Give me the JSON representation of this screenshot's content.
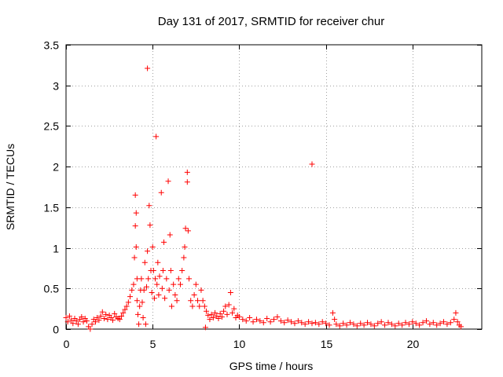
{
  "chart_data": {
    "type": "scatter",
    "title": "Day 131 of 2017, SRMTID for receiver chur",
    "xlabel": "GPS time / hours",
    "ylabel": "SRMTID / TECUs",
    "xlim": [
      0,
      24
    ],
    "ylim": [
      0,
      3.5
    ],
    "x_ticks": [
      0,
      5,
      10,
      15,
      20
    ],
    "x_tick_labels": [
      "0",
      "5",
      "10",
      "15",
      "20"
    ],
    "y_ticks": [
      0,
      0.5,
      1,
      1.5,
      2,
      2.5,
      3,
      3.5
    ],
    "y_tick_labels": [
      "0",
      "0.5",
      "1",
      "1.5",
      "2",
      "2.5",
      "3",
      "3.5"
    ],
    "grid": true,
    "marker": "+",
    "series": [
      {
        "name": "SRMTID",
        "color": "#ff0000",
        "points": [
          [
            0.0,
            0.14
          ],
          [
            0.1,
            0.09
          ],
          [
            0.2,
            0.16
          ],
          [
            0.3,
            0.11
          ],
          [
            0.4,
            0.07
          ],
          [
            0.5,
            0.13
          ],
          [
            0.6,
            0.1
          ],
          [
            0.7,
            0.06
          ],
          [
            0.8,
            0.12
          ],
          [
            0.9,
            0.15
          ],
          [
            1.0,
            0.09
          ],
          [
            1.1,
            0.13
          ],
          [
            1.2,
            0.1
          ],
          [
            1.3,
            0.03
          ],
          [
            1.4,
            0.0
          ],
          [
            1.5,
            0.06
          ],
          [
            1.6,
            0.12
          ],
          [
            1.7,
            0.09
          ],
          [
            1.8,
            0.14
          ],
          [
            1.9,
            0.11
          ],
          [
            2.0,
            0.16
          ],
          [
            2.1,
            0.21
          ],
          [
            2.2,
            0.13
          ],
          [
            2.3,
            0.18
          ],
          [
            2.4,
            0.12
          ],
          [
            2.5,
            0.17
          ],
          [
            2.6,
            0.14
          ],
          [
            2.7,
            0.11
          ],
          [
            2.8,
            0.19
          ],
          [
            2.9,
            0.15
          ],
          [
            3.0,
            0.13
          ],
          [
            3.1,
            0.12
          ],
          [
            3.2,
            0.16
          ],
          [
            3.3,
            0.2
          ],
          [
            3.4,
            0.24
          ],
          [
            3.5,
            0.28
          ],
          [
            3.6,
            0.33
          ],
          [
            3.7,
            0.4
          ],
          [
            3.8,
            0.48
          ],
          [
            3.9,
            0.55
          ],
          [
            3.95,
            0.88
          ],
          [
            4.0,
            1.65
          ],
          [
            4.0,
            1.27
          ],
          [
            4.05,
            1.43
          ],
          [
            4.05,
            1.01
          ],
          [
            4.1,
            0.62
          ],
          [
            4.1,
            0.35
          ],
          [
            4.15,
            0.18
          ],
          [
            4.2,
            0.06
          ],
          [
            4.25,
            0.28
          ],
          [
            4.3,
            0.48
          ],
          [
            4.35,
            0.62
          ],
          [
            4.4,
            0.33
          ],
          [
            4.45,
            0.14
          ],
          [
            4.5,
            0.48
          ],
          [
            4.55,
            0.82
          ],
          [
            4.6,
            0.06
          ],
          [
            4.65,
            0.52
          ],
          [
            4.7,
            0.96
          ],
          [
            4.7,
            3.21
          ],
          [
            4.75,
            0.62
          ],
          [
            4.8,
            1.52
          ],
          [
            4.85,
            1.28
          ],
          [
            4.9,
            0.72
          ],
          [
            4.95,
            0.45
          ],
          [
            5.0,
            1.01
          ],
          [
            5.05,
            0.72
          ],
          [
            5.1,
            0.38
          ],
          [
            5.15,
            0.62
          ],
          [
            5.2,
            2.37
          ],
          [
            5.25,
            0.55
          ],
          [
            5.3,
            0.82
          ],
          [
            5.35,
            0.42
          ],
          [
            5.4,
            0.65
          ],
          [
            5.5,
            1.68
          ],
          [
            5.55,
            0.5
          ],
          [
            5.6,
            0.72
          ],
          [
            5.65,
            1.07
          ],
          [
            5.7,
            0.38
          ],
          [
            5.8,
            0.62
          ],
          [
            5.9,
            1.82
          ],
          [
            5.95,
            0.48
          ],
          [
            6.0,
            1.16
          ],
          [
            6.05,
            0.72
          ],
          [
            6.1,
            0.28
          ],
          [
            6.2,
            0.55
          ],
          [
            6.3,
            0.42
          ],
          [
            6.4,
            0.35
          ],
          [
            6.5,
            0.62
          ],
          [
            6.6,
            0.55
          ],
          [
            6.7,
            0.72
          ],
          [
            6.8,
            0.88
          ],
          [
            6.85,
            1.01
          ],
          [
            6.9,
            1.24
          ],
          [
            7.0,
            1.93
          ],
          [
            7.0,
            1.81
          ],
          [
            7.05,
            1.21
          ],
          [
            7.1,
            0.62
          ],
          [
            7.2,
            0.35
          ],
          [
            7.3,
            0.28
          ],
          [
            7.4,
            0.42
          ],
          [
            7.5,
            0.55
          ],
          [
            7.6,
            0.35
          ],
          [
            7.7,
            0.28
          ],
          [
            7.8,
            0.48
          ],
          [
            7.9,
            0.35
          ],
          [
            8.0,
            0.28
          ],
          [
            8.05,
            0.02
          ],
          [
            8.1,
            0.22
          ],
          [
            8.2,
            0.17
          ],
          [
            8.3,
            0.12
          ],
          [
            8.4,
            0.18
          ],
          [
            8.5,
            0.14
          ],
          [
            8.6,
            0.2
          ],
          [
            8.7,
            0.16
          ],
          [
            8.8,
            0.13
          ],
          [
            8.9,
            0.19
          ],
          [
            9.0,
            0.15
          ],
          [
            9.1,
            0.22
          ],
          [
            9.2,
            0.28
          ],
          [
            9.3,
            0.18
          ],
          [
            9.4,
            0.3
          ],
          [
            9.5,
            0.45
          ],
          [
            9.6,
            0.2
          ],
          [
            9.7,
            0.25
          ],
          [
            9.8,
            0.14
          ],
          [
            9.9,
            0.17
          ],
          [
            10.0,
            0.15
          ],
          [
            10.2,
            0.12
          ],
          [
            10.4,
            0.1
          ],
          [
            10.6,
            0.14
          ],
          [
            10.8,
            0.09
          ],
          [
            11.0,
            0.12
          ],
          [
            11.2,
            0.1
          ],
          [
            11.4,
            0.08
          ],
          [
            11.6,
            0.13
          ],
          [
            11.8,
            0.09
          ],
          [
            12.0,
            0.12
          ],
          [
            12.2,
            0.15
          ],
          [
            12.4,
            0.1
          ],
          [
            12.6,
            0.08
          ],
          [
            12.8,
            0.11
          ],
          [
            13.0,
            0.09
          ],
          [
            13.2,
            0.07
          ],
          [
            13.4,
            0.1
          ],
          [
            13.6,
            0.08
          ],
          [
            13.8,
            0.06
          ],
          [
            14.0,
            0.09
          ],
          [
            14.2,
            2.03
          ],
          [
            14.2,
            0.07
          ],
          [
            14.4,
            0.08
          ],
          [
            14.6,
            0.06
          ],
          [
            14.8,
            0.09
          ],
          [
            15.0,
            0.07
          ],
          [
            15.2,
            0.05
          ],
          [
            15.4,
            0.2
          ],
          [
            15.5,
            0.12
          ],
          [
            15.6,
            0.06
          ],
          [
            15.8,
            0.04
          ],
          [
            16.0,
            0.07
          ],
          [
            16.2,
            0.05
          ],
          [
            16.4,
            0.08
          ],
          [
            16.6,
            0.06
          ],
          [
            16.8,
            0.04
          ],
          [
            17.0,
            0.07
          ],
          [
            17.2,
            0.05
          ],
          [
            17.4,
            0.08
          ],
          [
            17.6,
            0.06
          ],
          [
            17.8,
            0.04
          ],
          [
            18.0,
            0.07
          ],
          [
            18.2,
            0.09
          ],
          [
            18.4,
            0.05
          ],
          [
            18.6,
            0.08
          ],
          [
            18.8,
            0.06
          ],
          [
            19.0,
            0.04
          ],
          [
            19.2,
            0.07
          ],
          [
            19.4,
            0.05
          ],
          [
            19.6,
            0.08
          ],
          [
            19.8,
            0.06
          ],
          [
            20.0,
            0.09
          ],
          [
            20.2,
            0.07
          ],
          [
            20.4,
            0.05
          ],
          [
            20.6,
            0.08
          ],
          [
            20.8,
            0.1
          ],
          [
            21.0,
            0.06
          ],
          [
            21.2,
            0.08
          ],
          [
            21.4,
            0.05
          ],
          [
            21.6,
            0.07
          ],
          [
            21.8,
            0.09
          ],
          [
            22.0,
            0.06
          ],
          [
            22.2,
            0.08
          ],
          [
            22.4,
            0.12
          ],
          [
            22.5,
            0.2
          ],
          [
            22.6,
            0.09
          ],
          [
            22.7,
            0.05
          ],
          [
            22.8,
            0.03
          ]
        ]
      }
    ]
  }
}
